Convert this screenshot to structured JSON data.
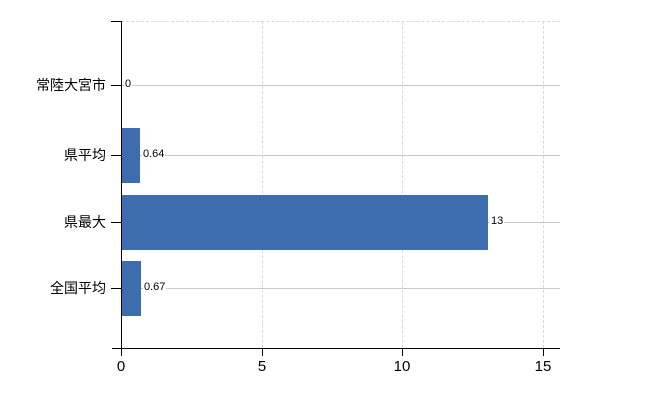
{
  "chart_data": {
    "type": "bar",
    "orientation": "horizontal",
    "title": "",
    "xlabel": "",
    "ylabel": "",
    "categories": [
      "常陸大宮市",
      "県平均",
      "県最大",
      "全国平均"
    ],
    "values": [
      0,
      0.64,
      13,
      0.67
    ],
    "value_labels": [
      "0",
      "0.64",
      "13",
      "0.67"
    ],
    "xlim": [
      0,
      15
    ],
    "x_ticks": [
      "0",
      "5",
      "10",
      "15"
    ],
    "x_tick_values": [
      0,
      5,
      10,
      15
    ],
    "grid": true,
    "legend": false,
    "gridline_style": "vertical dashed at ticks, horizontal solid at category centers, dashed top border",
    "colors": {
      "bar": "#3d6dae",
      "axis": "#000000",
      "grid_solid": "#c9c9c9",
      "grid_dashed": "#d8d8d8",
      "text": "#000000",
      "background": "#ffffff"
    }
  }
}
